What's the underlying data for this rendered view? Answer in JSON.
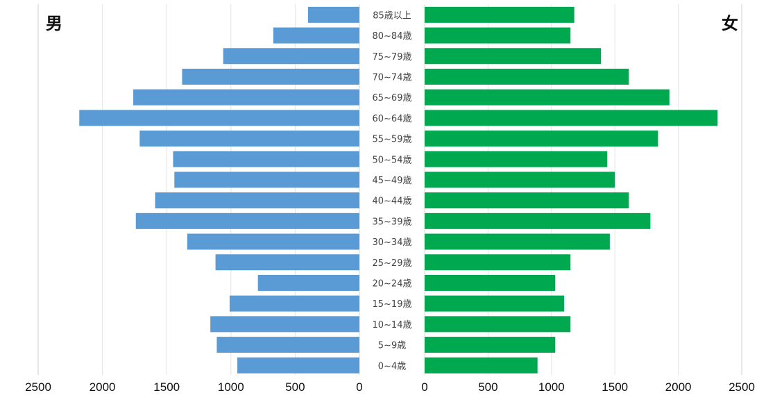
{
  "labels": {
    "male": "男",
    "female": "女"
  },
  "chart_data": {
    "type": "bar",
    "orientation": "horizontal-population-pyramid",
    "categories": [
      "85歳以上",
      "80~84歳",
      "75~79歳",
      "70~74歳",
      "65~69歳",
      "60~64歳",
      "55~59歳",
      "50~54歳",
      "45~49歳",
      "40~44歳",
      "35~39歳",
      "30~34歳",
      "25~29歳",
      "20~24歳",
      "15~19歳",
      "10~14歳",
      "5~9歳",
      "0~4歳"
    ],
    "series": [
      {
        "name": "男",
        "color": "#5b9bd5",
        "values": [
          400,
          670,
          1060,
          1380,
          1760,
          2180,
          1710,
          1450,
          1440,
          1590,
          1740,
          1340,
          1120,
          790,
          1010,
          1160,
          1110,
          950
        ]
      },
      {
        "name": "女",
        "color": "#00a84f",
        "values": [
          1180,
          1150,
          1390,
          1610,
          1930,
          2310,
          1840,
          1440,
          1500,
          1610,
          1780,
          1460,
          1150,
          1030,
          1100,
          1150,
          1030,
          890
        ]
      }
    ],
    "xlim": [
      0,
      2500
    ],
    "x_ticks_male": [
      "2500",
      "2000",
      "1500",
      "1000",
      "500",
      "0"
    ],
    "x_ticks_female": [
      "0",
      "500",
      "1000",
      "1500",
      "2000",
      "2500"
    ],
    "grid": true,
    "gridline_color": "#e3e3e3"
  }
}
